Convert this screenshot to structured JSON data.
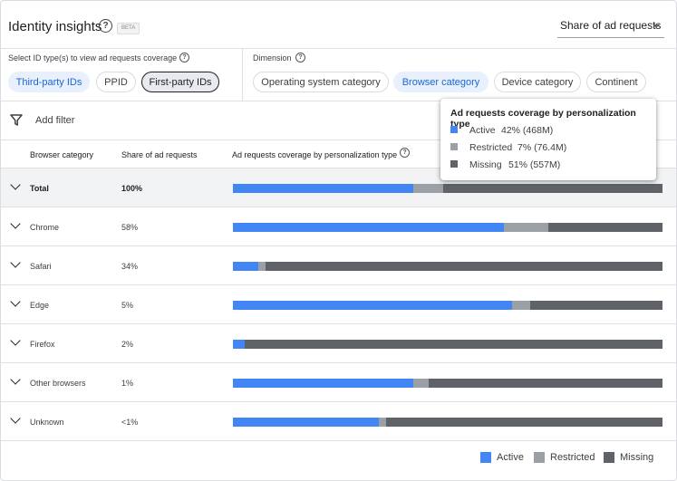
{
  "header": {
    "title": "Identity insights",
    "beta_label": "BETA",
    "metric_selected": "Share of ad requests"
  },
  "id_types": {
    "label": "Select ID type(s) to view ad requests coverage",
    "chips": [
      {
        "label": "Third-party IDs",
        "state": "selected"
      },
      {
        "label": "PPID",
        "state": "outline"
      },
      {
        "label": "First-party IDs",
        "state": "focused"
      }
    ]
  },
  "dimension": {
    "label": "Dimension",
    "chips": [
      {
        "label": "Operating system category",
        "state": "outline"
      },
      {
        "label": "Browser category",
        "state": "selected"
      },
      {
        "label": "Device category",
        "state": "outline"
      },
      {
        "label": "Continent",
        "state": "outline"
      }
    ]
  },
  "filter": {
    "label": "Add filter"
  },
  "table": {
    "headers": [
      "Browser category",
      "Share of ad requests",
      "Ad requests coverage by personalization type"
    ],
    "rows": [
      {
        "name": "Total",
        "share": "100%",
        "active": 42,
        "restricted": 7,
        "missing": 51,
        "total": true
      },
      {
        "name": "Chrome",
        "share": "58%",
        "active": 63,
        "restricted": 10.5,
        "missing": 26.5
      },
      {
        "name": "Safari",
        "share": "34%",
        "active": 6,
        "restricted": 1.5,
        "missing": 92.5
      },
      {
        "name": "Edge",
        "share": "5%",
        "active": 65,
        "restricted": 4.2,
        "missing": 30.8
      },
      {
        "name": "Firefox",
        "share": "2%",
        "active": 2.7,
        "restricted": 0,
        "missing": 97.3
      },
      {
        "name": "Other browsers",
        "share": "1%",
        "active": 42,
        "restricted": 3.6,
        "missing": 54.4
      },
      {
        "name": "Unknown",
        "share": "<1%",
        "active": 34,
        "restricted": 1.7,
        "missing": 64.3
      }
    ]
  },
  "legend": {
    "active": "Active",
    "restricted": "Restricted",
    "missing": "Missing"
  },
  "tooltip": {
    "title": "Ad requests coverage by personalization type",
    "items": [
      {
        "label": "Active",
        "value": "42% (468M)"
      },
      {
        "label": "Restricted",
        "value": "7% (76.4M)"
      },
      {
        "label": "Missing",
        "value": "51% (557M)"
      }
    ]
  },
  "colors": {
    "active": "#4285f4",
    "restricted": "#9aa0a6",
    "missing": "#5f6368",
    "selected_chip": "#e8f0fe"
  }
}
